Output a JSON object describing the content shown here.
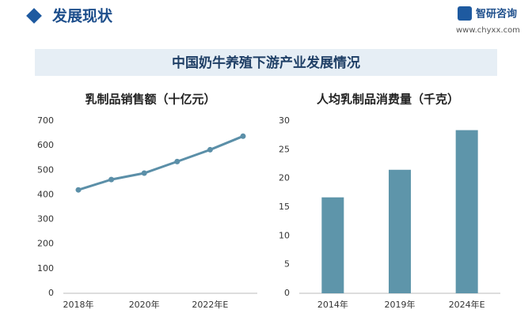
{
  "header": {
    "title": "发展现状",
    "logo": "智研咨询",
    "url": "www.chyxx.com"
  },
  "banner": {
    "title": "中国奶牛养殖下游产业发展情况"
  },
  "chart_data": [
    {
      "type": "line",
      "title": "乳制品销售额（十亿元）",
      "categories": [
        "2018年",
        null,
        "2020年",
        null,
        "2022年E",
        null
      ],
      "values": [
        420,
        462,
        488,
        535,
        583,
        638
      ],
      "color": "#5b8fa8",
      "ylim": [
        0,
        700
      ],
      "yticks": [
        0,
        100,
        200,
        300,
        400,
        500,
        600,
        700
      ]
    },
    {
      "type": "bar",
      "title": "人均乳制品消费量（千克）",
      "categories": [
        "2014年",
        "2019年",
        "2024年E"
      ],
      "values": [
        16.7,
        21.5,
        28.4
      ],
      "color": "#5e95aa",
      "ylim": [
        0,
        30
      ],
      "yticks": [
        0,
        5,
        10,
        15,
        20,
        25,
        30
      ]
    }
  ]
}
